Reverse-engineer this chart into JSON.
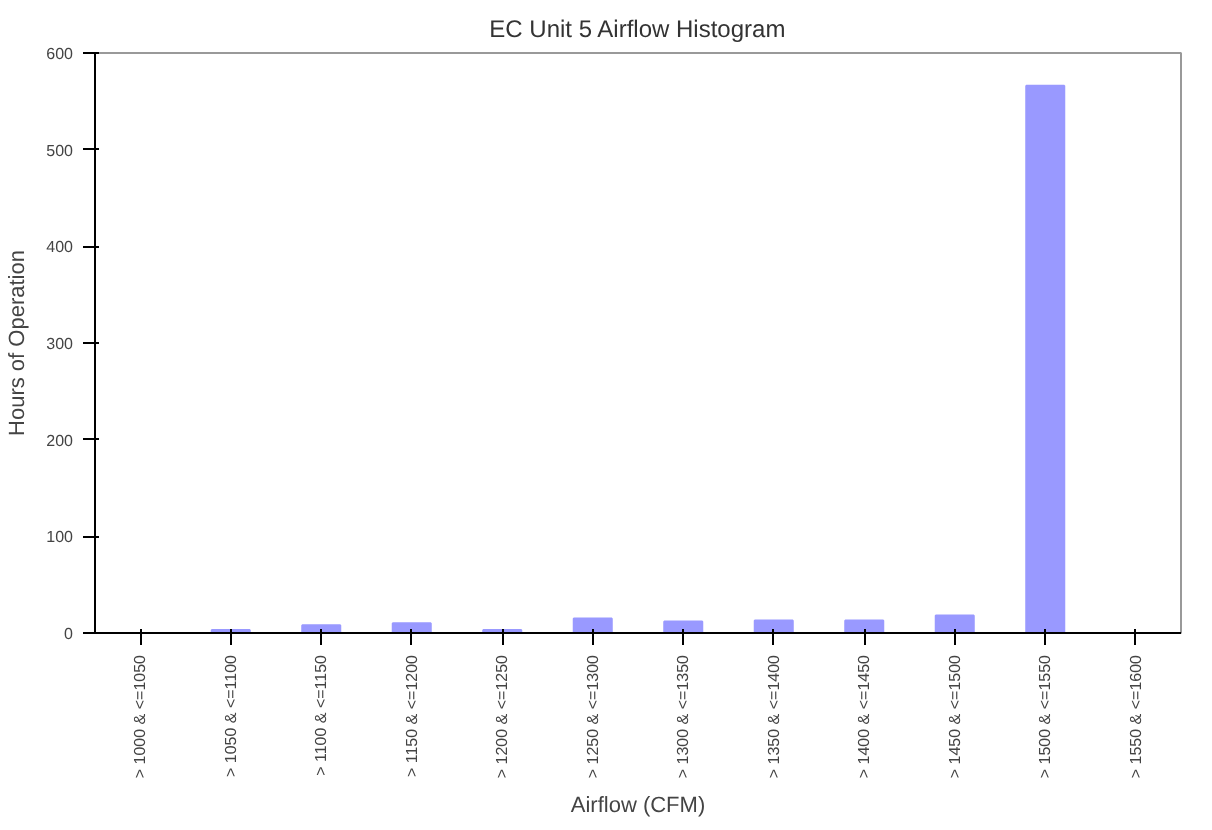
{
  "chart_data": {
    "type": "bar",
    "title": "EC Unit 5 Airflow Histogram",
    "xlabel": "Airflow (CFM)",
    "ylabel": "Hours of Operation",
    "categories": [
      "> 1000 & <=1050",
      "> 1050 & <=1100",
      "> 1100 & <=1150",
      "> 1150 & <=1200",
      "> 1200 & <=1250",
      "> 1250 & <=1300",
      "> 1300 & <=1350",
      "> 1350 & <=1400",
      "> 1400 & <=1450",
      "> 1450 & <=1500",
      "> 1500 & <=1550",
      "> 1550 & <=1600"
    ],
    "values": [
      0,
      3,
      8,
      10,
      3,
      15,
      12,
      13,
      13,
      18,
      566,
      0
    ],
    "color": "#9999ff",
    "ylim": [
      0,
      600
    ],
    "yticks": [
      0,
      100,
      200,
      300,
      400,
      500,
      600
    ],
    "grid": false
  }
}
